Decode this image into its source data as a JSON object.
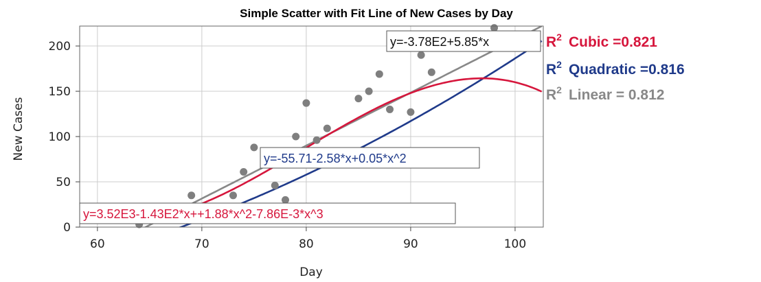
{
  "chart_data": {
    "type": "scatter",
    "title": "Simple Scatter with Fit Line of New Cases by Day",
    "xlabel": "Day",
    "ylabel": "New Cases",
    "xlim": [
      58.3,
      102.7
    ],
    "ylim": [
      0,
      222
    ],
    "xticks": [
      "60",
      "70",
      "80",
      "90",
      "100"
    ],
    "yticks": [
      "0",
      "50",
      "100",
      "150",
      "200"
    ],
    "grid": true,
    "points": [
      {
        "x": 64,
        "y": 3
      },
      {
        "x": 69,
        "y": 35
      },
      {
        "x": 73,
        "y": 35
      },
      {
        "x": 74,
        "y": 61
      },
      {
        "x": 75,
        "y": 88
      },
      {
        "x": 77,
        "y": 46
      },
      {
        "x": 78,
        "y": 30
      },
      {
        "x": 79,
        "y": 100
      },
      {
        "x": 80,
        "y": 137
      },
      {
        "x": 81,
        "y": 96
      },
      {
        "x": 82,
        "y": 109
      },
      {
        "x": 85,
        "y": 142
      },
      {
        "x": 86,
        "y": 150
      },
      {
        "x": 87,
        "y": 169
      },
      {
        "x": 88,
        "y": 130
      },
      {
        "x": 90,
        "y": 127
      },
      {
        "x": 91,
        "y": 190
      },
      {
        "x": 92,
        "y": 171
      },
      {
        "x": 98,
        "y": 220
      }
    ],
    "series": [
      {
        "name": "Linear",
        "fit": "linear",
        "color": "#888888",
        "equation": "y=-3.78E2+5.85*x",
        "r2_label": "Linear = 0.812",
        "coefficients": [
          -378,
          5.85
        ]
      },
      {
        "name": "Quadratic",
        "fit": "quadratic",
        "color": "#1f3a8a",
        "equation": "y=-55.71-2.58*x+0.05*x^2",
        "r2_label": "Quadratic =0.816",
        "coefficients": [
          -55.71,
          -2.58,
          0.05
        ]
      },
      {
        "name": "Cubic",
        "fit": "cubic",
        "color": "#d6163c",
        "equation": "y=3.52E3-1.43E2*x++1.88*x^2-7.86E-3*x^3",
        "r2_label": "Cubic =0.821",
        "coefficients": [
          3520,
          -143,
          1.88,
          -0.00786
        ]
      }
    ],
    "r2_symbol": "R",
    "r2_superscript": "2",
    "legend_position": "right",
    "colors": {
      "points": "#7f7f7f",
      "grid": "#cccccc",
      "frame": "#666666"
    }
  }
}
